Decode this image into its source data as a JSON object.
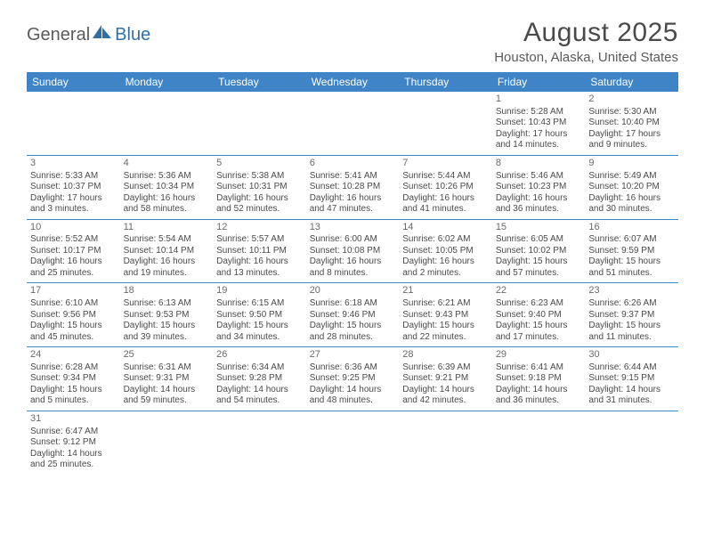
{
  "logo": {
    "general": "General",
    "blue": "Blue"
  },
  "title": "August 2025",
  "location": "Houston, Alaska, United States",
  "colors": {
    "header_bg": "#3e84c6",
    "header_text": "#ffffff",
    "border": "#3e84c6",
    "text": "#4a4a4a",
    "logo_gray": "#5a5a5a",
    "logo_blue": "#2f6fa8"
  },
  "day_headers": [
    "Sunday",
    "Monday",
    "Tuesday",
    "Wednesday",
    "Thursday",
    "Friday",
    "Saturday"
  ],
  "weeks": [
    [
      null,
      null,
      null,
      null,
      null,
      {
        "day": "1",
        "sunrise": "Sunrise: 5:28 AM",
        "sunset": "Sunset: 10:43 PM",
        "daylight1": "Daylight: 17 hours",
        "daylight2": "and 14 minutes."
      },
      {
        "day": "2",
        "sunrise": "Sunrise: 5:30 AM",
        "sunset": "Sunset: 10:40 PM",
        "daylight1": "Daylight: 17 hours",
        "daylight2": "and 9 minutes."
      }
    ],
    [
      {
        "day": "3",
        "sunrise": "Sunrise: 5:33 AM",
        "sunset": "Sunset: 10:37 PM",
        "daylight1": "Daylight: 17 hours",
        "daylight2": "and 3 minutes."
      },
      {
        "day": "4",
        "sunrise": "Sunrise: 5:36 AM",
        "sunset": "Sunset: 10:34 PM",
        "daylight1": "Daylight: 16 hours",
        "daylight2": "and 58 minutes."
      },
      {
        "day": "5",
        "sunrise": "Sunrise: 5:38 AM",
        "sunset": "Sunset: 10:31 PM",
        "daylight1": "Daylight: 16 hours",
        "daylight2": "and 52 minutes."
      },
      {
        "day": "6",
        "sunrise": "Sunrise: 5:41 AM",
        "sunset": "Sunset: 10:28 PM",
        "daylight1": "Daylight: 16 hours",
        "daylight2": "and 47 minutes."
      },
      {
        "day": "7",
        "sunrise": "Sunrise: 5:44 AM",
        "sunset": "Sunset: 10:26 PM",
        "daylight1": "Daylight: 16 hours",
        "daylight2": "and 41 minutes."
      },
      {
        "day": "8",
        "sunrise": "Sunrise: 5:46 AM",
        "sunset": "Sunset: 10:23 PM",
        "daylight1": "Daylight: 16 hours",
        "daylight2": "and 36 minutes."
      },
      {
        "day": "9",
        "sunrise": "Sunrise: 5:49 AM",
        "sunset": "Sunset: 10:20 PM",
        "daylight1": "Daylight: 16 hours",
        "daylight2": "and 30 minutes."
      }
    ],
    [
      {
        "day": "10",
        "sunrise": "Sunrise: 5:52 AM",
        "sunset": "Sunset: 10:17 PM",
        "daylight1": "Daylight: 16 hours",
        "daylight2": "and 25 minutes."
      },
      {
        "day": "11",
        "sunrise": "Sunrise: 5:54 AM",
        "sunset": "Sunset: 10:14 PM",
        "daylight1": "Daylight: 16 hours",
        "daylight2": "and 19 minutes."
      },
      {
        "day": "12",
        "sunrise": "Sunrise: 5:57 AM",
        "sunset": "Sunset: 10:11 PM",
        "daylight1": "Daylight: 16 hours",
        "daylight2": "and 13 minutes."
      },
      {
        "day": "13",
        "sunrise": "Sunrise: 6:00 AM",
        "sunset": "Sunset: 10:08 PM",
        "daylight1": "Daylight: 16 hours",
        "daylight2": "and 8 minutes."
      },
      {
        "day": "14",
        "sunrise": "Sunrise: 6:02 AM",
        "sunset": "Sunset: 10:05 PM",
        "daylight1": "Daylight: 16 hours",
        "daylight2": "and 2 minutes."
      },
      {
        "day": "15",
        "sunrise": "Sunrise: 6:05 AM",
        "sunset": "Sunset: 10:02 PM",
        "daylight1": "Daylight: 15 hours",
        "daylight2": "and 57 minutes."
      },
      {
        "day": "16",
        "sunrise": "Sunrise: 6:07 AM",
        "sunset": "Sunset: 9:59 PM",
        "daylight1": "Daylight: 15 hours",
        "daylight2": "and 51 minutes."
      }
    ],
    [
      {
        "day": "17",
        "sunrise": "Sunrise: 6:10 AM",
        "sunset": "Sunset: 9:56 PM",
        "daylight1": "Daylight: 15 hours",
        "daylight2": "and 45 minutes."
      },
      {
        "day": "18",
        "sunrise": "Sunrise: 6:13 AM",
        "sunset": "Sunset: 9:53 PM",
        "daylight1": "Daylight: 15 hours",
        "daylight2": "and 39 minutes."
      },
      {
        "day": "19",
        "sunrise": "Sunrise: 6:15 AM",
        "sunset": "Sunset: 9:50 PM",
        "daylight1": "Daylight: 15 hours",
        "daylight2": "and 34 minutes."
      },
      {
        "day": "20",
        "sunrise": "Sunrise: 6:18 AM",
        "sunset": "Sunset: 9:46 PM",
        "daylight1": "Daylight: 15 hours",
        "daylight2": "and 28 minutes."
      },
      {
        "day": "21",
        "sunrise": "Sunrise: 6:21 AM",
        "sunset": "Sunset: 9:43 PM",
        "daylight1": "Daylight: 15 hours",
        "daylight2": "and 22 minutes."
      },
      {
        "day": "22",
        "sunrise": "Sunrise: 6:23 AM",
        "sunset": "Sunset: 9:40 PM",
        "daylight1": "Daylight: 15 hours",
        "daylight2": "and 17 minutes."
      },
      {
        "day": "23",
        "sunrise": "Sunrise: 6:26 AM",
        "sunset": "Sunset: 9:37 PM",
        "daylight1": "Daylight: 15 hours",
        "daylight2": "and 11 minutes."
      }
    ],
    [
      {
        "day": "24",
        "sunrise": "Sunrise: 6:28 AM",
        "sunset": "Sunset: 9:34 PM",
        "daylight1": "Daylight: 15 hours",
        "daylight2": "and 5 minutes."
      },
      {
        "day": "25",
        "sunrise": "Sunrise: 6:31 AM",
        "sunset": "Sunset: 9:31 PM",
        "daylight1": "Daylight: 14 hours",
        "daylight2": "and 59 minutes."
      },
      {
        "day": "26",
        "sunrise": "Sunrise: 6:34 AM",
        "sunset": "Sunset: 9:28 PM",
        "daylight1": "Daylight: 14 hours",
        "daylight2": "and 54 minutes."
      },
      {
        "day": "27",
        "sunrise": "Sunrise: 6:36 AM",
        "sunset": "Sunset: 9:25 PM",
        "daylight1": "Daylight: 14 hours",
        "daylight2": "and 48 minutes."
      },
      {
        "day": "28",
        "sunrise": "Sunrise: 6:39 AM",
        "sunset": "Sunset: 9:21 PM",
        "daylight1": "Daylight: 14 hours",
        "daylight2": "and 42 minutes."
      },
      {
        "day": "29",
        "sunrise": "Sunrise: 6:41 AM",
        "sunset": "Sunset: 9:18 PM",
        "daylight1": "Daylight: 14 hours",
        "daylight2": "and 36 minutes."
      },
      {
        "day": "30",
        "sunrise": "Sunrise: 6:44 AM",
        "sunset": "Sunset: 9:15 PM",
        "daylight1": "Daylight: 14 hours",
        "daylight2": "and 31 minutes."
      }
    ],
    [
      {
        "day": "31",
        "sunrise": "Sunrise: 6:47 AM",
        "sunset": "Sunset: 9:12 PM",
        "daylight1": "Daylight: 14 hours",
        "daylight2": "and 25 minutes."
      },
      null,
      null,
      null,
      null,
      null,
      null
    ]
  ]
}
